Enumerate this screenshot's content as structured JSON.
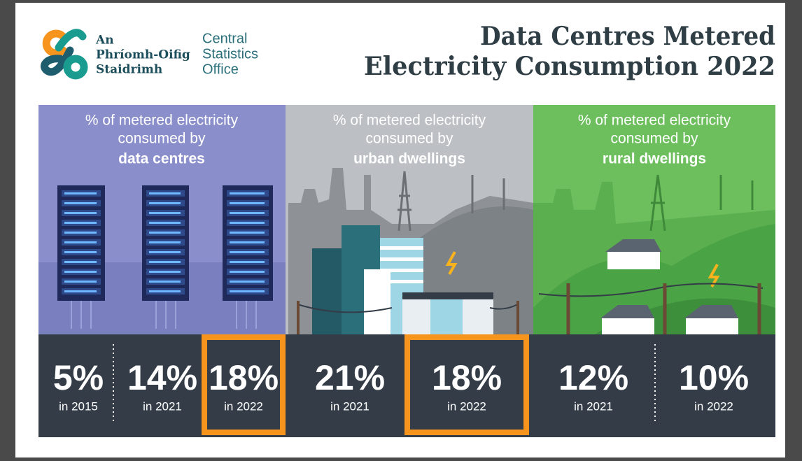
{
  "header": {
    "logo": {
      "irish": [
        "An",
        "Phríomh-Oifig",
        "Staidrimh"
      ],
      "english": [
        "Central",
        "Statistics",
        "Office"
      ]
    },
    "title": [
      "Data Centres Metered",
      "Electricity Consumption 2022"
    ]
  },
  "panels": [
    {
      "caption": [
        "% of metered electricity",
        "consumed by"
      ],
      "subject": "data centres",
      "stats": [
        {
          "value": "5%",
          "year": "in 2015"
        },
        {
          "value": "14%",
          "year": "in 2021"
        },
        {
          "value": "18%",
          "year": "in 2022",
          "highlighted": true
        }
      ]
    },
    {
      "caption": [
        "% of metered electricity",
        "consumed by"
      ],
      "subject": "urban dwellings",
      "stats": [
        {
          "value": "21%",
          "year": "in 2021"
        },
        {
          "value": "18%",
          "year": "in 2022",
          "highlighted": true
        }
      ]
    },
    {
      "caption": [
        "% of metered electricity",
        "consumed by"
      ],
      "subject": "rural dwellings",
      "stats": [
        {
          "value": "12%",
          "year": "in 2021"
        },
        {
          "value": "10%",
          "year": "in 2022"
        }
      ]
    }
  ]
}
